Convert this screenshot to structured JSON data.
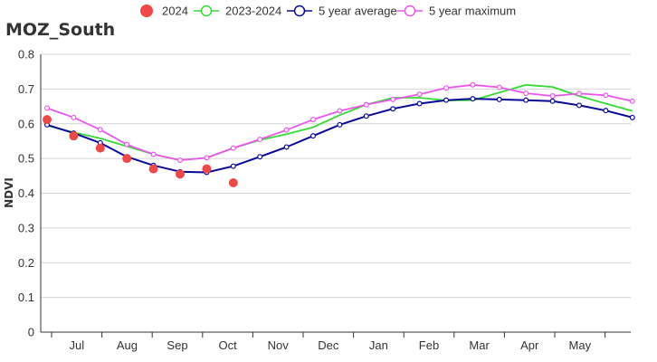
{
  "chart_data": {
    "type": "line",
    "title": "MOZ_South",
    "xlabel": "",
    "ylabel": "NDVI",
    "ylim": [
      0,
      0.8
    ],
    "yticks": [
      "0",
      "0.1",
      "0.2",
      "0.3",
      "0.4",
      "0.5",
      "0.6",
      "0.7",
      "0.8"
    ],
    "x_month_labels": [
      "Jul",
      "Aug",
      "Sep",
      "Oct",
      "Nov",
      "Dec",
      "Jan",
      "Feb",
      "Mar",
      "Apr",
      "May"
    ],
    "grid": true,
    "legend_position": "top",
    "series": [
      {
        "name": "2024",
        "style": "dots",
        "color": "#f04747",
        "values": [
          0.612,
          0.565,
          0.53,
          0.5,
          0.47,
          0.455,
          0.47,
          0.43
        ]
      },
      {
        "name": "2023-2024",
        "style": "line",
        "color": "#33dd33",
        "values": [
          0.595,
          0.575,
          0.558,
          0.535,
          0.512,
          0.495,
          0.502,
          0.53,
          0.553,
          0.57,
          0.59,
          0.625,
          0.655,
          0.675,
          0.675,
          0.667,
          0.668,
          0.69,
          0.712,
          0.706,
          0.68,
          0.658,
          0.637
        ]
      },
      {
        "name": "5 year average",
        "style": "line-markers",
        "color": "#0a0a9a",
        "values": [
          0.597,
          0.573,
          0.545,
          0.505,
          0.48,
          0.462,
          0.46,
          0.478,
          0.505,
          0.533,
          0.565,
          0.597,
          0.622,
          0.643,
          0.658,
          0.668,
          0.672,
          0.67,
          0.668,
          0.665,
          0.653,
          0.638,
          0.618
        ]
      },
      {
        "name": "5 year maximum",
        "style": "line-markers",
        "color": "#ee55ee",
        "values": [
          0.645,
          0.618,
          0.583,
          0.54,
          0.512,
          0.495,
          0.502,
          0.53,
          0.555,
          0.582,
          0.612,
          0.637,
          0.655,
          0.67,
          0.685,
          0.703,
          0.712,
          0.705,
          0.688,
          0.68,
          0.687,
          0.682,
          0.665
        ]
      }
    ]
  }
}
